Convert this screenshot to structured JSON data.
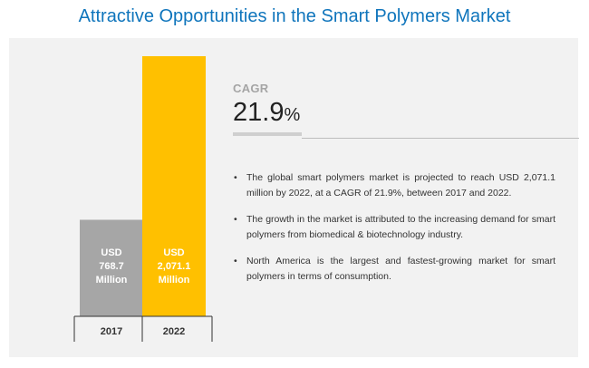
{
  "header": {
    "title": "Attractive Opportunities in the Smart Polymers Market"
  },
  "cagr": {
    "label": "CAGR",
    "value": "21.9",
    "unit": "%"
  },
  "bullets": [
    "The global smart polymers market is projected to reach USD 2,071.1 million by 2022, at a CAGR of 21.9%, between 2017 and 2022.",
    "The growth in the market is attributed to the increasing demand for smart polymers from biomedical & biotechnology industry.",
    "North America is the largest and fastest-growing market for smart polymers in terms of consumption."
  ],
  "chart_data": {
    "type": "bar",
    "categories": [
      "2017",
      "2022"
    ],
    "values": [
      768.7,
      2071.1
    ],
    "data_labels": [
      [
        "USD",
        "768.7",
        "Million"
      ],
      [
        "USD",
        "2,071.1",
        "Million"
      ]
    ],
    "colors": [
      "#a6a6a6",
      "#ffc000"
    ],
    "label_colors": [
      "#ffffff",
      "#ffffff"
    ],
    "grid": false,
    "legend": "none"
  }
}
